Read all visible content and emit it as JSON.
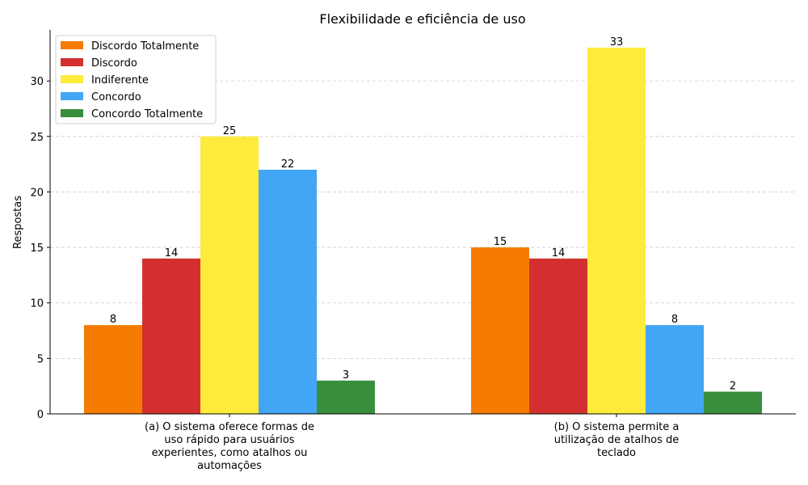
{
  "chart_data": {
    "type": "bar",
    "title": "Flexibilidade e eficiência de uso",
    "xlabel": "",
    "ylabel": "Respostas",
    "ylim": [
      0,
      34.6
    ],
    "yticks": [
      0,
      5,
      10,
      15,
      20,
      25,
      30
    ],
    "grid": "horizontal-dashed",
    "legend_position": "top-left",
    "categories": [
      [
        "(a) O sistema oferece formas de",
        "uso rápido para usuários",
        "experientes, como atalhos ou",
        "automações"
      ],
      [
        "(b) O sistema permite a",
        "utilização de atalhos de",
        "teclado"
      ]
    ],
    "series": [
      {
        "name": "Discordo Totalmente",
        "color": "#F57C00",
        "values": [
          8,
          15
        ]
      },
      {
        "name": "Discordo",
        "color": "#D32F2F",
        "values": [
          14,
          14
        ]
      },
      {
        "name": "Indiferente",
        "color": "#FFEB3B",
        "values": [
          25,
          33
        ]
      },
      {
        "name": "Concordo",
        "color": "#42A5F5",
        "values": [
          22,
          8
        ]
      },
      {
        "name": "Concordo Totalmente",
        "color": "#388E3C",
        "values": [
          3,
          2
        ]
      }
    ]
  }
}
